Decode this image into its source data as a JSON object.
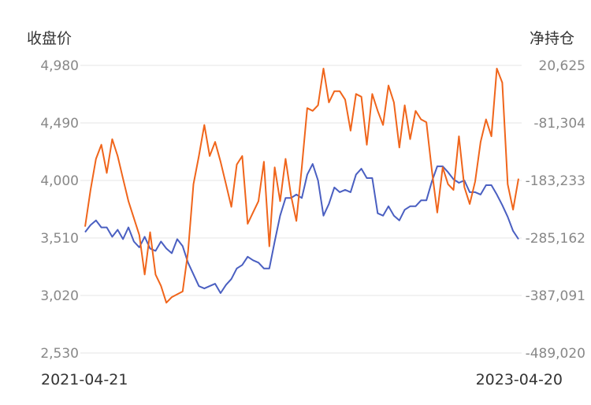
{
  "chart_data": {
    "type": "line",
    "left_axis_label": "收盘价",
    "right_axis_label": "净持仓",
    "left_ticks": [
      "4,980",
      "4,490",
      "4,000",
      "3,510",
      "3,020",
      "2,530"
    ],
    "right_ticks": [
      "20,625",
      "-81,304",
      "-183,233",
      "-285,162",
      "-387,091",
      "-489,020"
    ],
    "y_left_range": [
      2530,
      4980
    ],
    "y_right_range": [
      -489020,
      20625
    ],
    "x_start_label": "2021-04-21",
    "x_end_label": "2023-04-20",
    "grid": true,
    "series": [
      {
        "axis": "left",
        "color": "#4a5fc1",
        "values": [
          3560,
          3620,
          3660,
          3600,
          3600,
          3520,
          3580,
          3500,
          3600,
          3480,
          3430,
          3520,
          3420,
          3400,
          3480,
          3420,
          3380,
          3500,
          3440,
          3300,
          3200,
          3100,
          3080,
          3100,
          3120,
          3040,
          3110,
          3160,
          3250,
          3280,
          3350,
          3320,
          3300,
          3250,
          3250,
          3480,
          3700,
          3850,
          3850,
          3880,
          3850,
          4050,
          4140,
          4000,
          3700,
          3800,
          3940,
          3900,
          3920,
          3900,
          4050,
          4100,
          4020,
          4020,
          3720,
          3700,
          3780,
          3700,
          3660,
          3750,
          3780,
          3780,
          3830,
          3830,
          3990,
          4120,
          4120,
          4070,
          4010,
          3980,
          4000,
          3900,
          3900,
          3880,
          3960,
          3960,
          3880,
          3790,
          3690,
          3570,
          3500
        ]
      },
      {
        "axis": "right",
        "color": "#f0651b",
        "values": [
          -265000,
          -200000,
          -145000,
          -120000,
          -170000,
          -110000,
          -140000,
          -180000,
          -220000,
          -250000,
          -280000,
          -350000,
          -275000,
          -350000,
          -370000,
          -400000,
          -390000,
          -385000,
          -380000,
          -310000,
          -190000,
          -140000,
          -85000,
          -140000,
          -115000,
          -150000,
          -190000,
          -230000,
          -155000,
          -140000,
          -260000,
          -240000,
          -220000,
          -150000,
          -300000,
          -160000,
          -220000,
          -145000,
          -210000,
          -255000,
          -160000,
          -55000,
          -60000,
          -50000,
          15000,
          -45000,
          -25000,
          -25000,
          -40000,
          -95000,
          -30000,
          -35000,
          -120000,
          -30000,
          -60000,
          -85000,
          -15000,
          -45000,
          -125000,
          -50000,
          -110000,
          -60000,
          -75000,
          -80000,
          -165000,
          -240000,
          -160000,
          -190000,
          -200000,
          -105000,
          -195000,
          -225000,
          -185000,
          -115000,
          -75000,
          -105000,
          15000,
          -10000,
          -190000,
          -235000,
          -180000
        ]
      }
    ]
  }
}
